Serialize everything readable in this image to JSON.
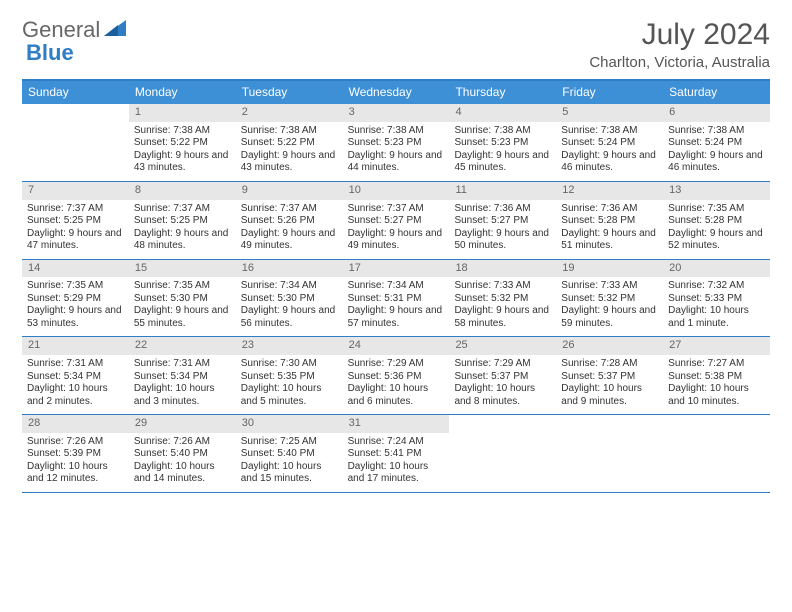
{
  "brand": {
    "text_gray": "General",
    "text_blue": "Blue"
  },
  "title": "July 2024",
  "location": "Charlton, Victoria, Australia",
  "colors": {
    "header_bg": "#3d8fd6",
    "rule": "#2f7dc4",
    "daynum_bg": "#e7e7e7",
    "text": "#333333",
    "title_text": "#555555",
    "logo_gray": "#676767",
    "logo_blue": "#2f7dc4"
  },
  "layout": {
    "columns": 7,
    "rows": 5,
    "first_weekday_index": 1
  },
  "weekdays": [
    "Sunday",
    "Monday",
    "Tuesday",
    "Wednesday",
    "Thursday",
    "Friday",
    "Saturday"
  ],
  "days": [
    {
      "n": 1,
      "sunrise": "7:38 AM",
      "sunset": "5:22 PM",
      "daylight": "9 hours and 43 minutes."
    },
    {
      "n": 2,
      "sunrise": "7:38 AM",
      "sunset": "5:22 PM",
      "daylight": "9 hours and 43 minutes."
    },
    {
      "n": 3,
      "sunrise": "7:38 AM",
      "sunset": "5:23 PM",
      "daylight": "9 hours and 44 minutes."
    },
    {
      "n": 4,
      "sunrise": "7:38 AM",
      "sunset": "5:23 PM",
      "daylight": "9 hours and 45 minutes."
    },
    {
      "n": 5,
      "sunrise": "7:38 AM",
      "sunset": "5:24 PM",
      "daylight": "9 hours and 46 minutes."
    },
    {
      "n": 6,
      "sunrise": "7:38 AM",
      "sunset": "5:24 PM",
      "daylight": "9 hours and 46 minutes."
    },
    {
      "n": 7,
      "sunrise": "7:37 AM",
      "sunset": "5:25 PM",
      "daylight": "9 hours and 47 minutes."
    },
    {
      "n": 8,
      "sunrise": "7:37 AM",
      "sunset": "5:25 PM",
      "daylight": "9 hours and 48 minutes."
    },
    {
      "n": 9,
      "sunrise": "7:37 AM",
      "sunset": "5:26 PM",
      "daylight": "9 hours and 49 minutes."
    },
    {
      "n": 10,
      "sunrise": "7:37 AM",
      "sunset": "5:27 PM",
      "daylight": "9 hours and 49 minutes."
    },
    {
      "n": 11,
      "sunrise": "7:36 AM",
      "sunset": "5:27 PM",
      "daylight": "9 hours and 50 minutes."
    },
    {
      "n": 12,
      "sunrise": "7:36 AM",
      "sunset": "5:28 PM",
      "daylight": "9 hours and 51 minutes."
    },
    {
      "n": 13,
      "sunrise": "7:35 AM",
      "sunset": "5:28 PM",
      "daylight": "9 hours and 52 minutes."
    },
    {
      "n": 14,
      "sunrise": "7:35 AM",
      "sunset": "5:29 PM",
      "daylight": "9 hours and 53 minutes."
    },
    {
      "n": 15,
      "sunrise": "7:35 AM",
      "sunset": "5:30 PM",
      "daylight": "9 hours and 55 minutes."
    },
    {
      "n": 16,
      "sunrise": "7:34 AM",
      "sunset": "5:30 PM",
      "daylight": "9 hours and 56 minutes."
    },
    {
      "n": 17,
      "sunrise": "7:34 AM",
      "sunset": "5:31 PM",
      "daylight": "9 hours and 57 minutes."
    },
    {
      "n": 18,
      "sunrise": "7:33 AM",
      "sunset": "5:32 PM",
      "daylight": "9 hours and 58 minutes."
    },
    {
      "n": 19,
      "sunrise": "7:33 AM",
      "sunset": "5:32 PM",
      "daylight": "9 hours and 59 minutes."
    },
    {
      "n": 20,
      "sunrise": "7:32 AM",
      "sunset": "5:33 PM",
      "daylight": "10 hours and 1 minute."
    },
    {
      "n": 21,
      "sunrise": "7:31 AM",
      "sunset": "5:34 PM",
      "daylight": "10 hours and 2 minutes."
    },
    {
      "n": 22,
      "sunrise": "7:31 AM",
      "sunset": "5:34 PM",
      "daylight": "10 hours and 3 minutes."
    },
    {
      "n": 23,
      "sunrise": "7:30 AM",
      "sunset": "5:35 PM",
      "daylight": "10 hours and 5 minutes."
    },
    {
      "n": 24,
      "sunrise": "7:29 AM",
      "sunset": "5:36 PM",
      "daylight": "10 hours and 6 minutes."
    },
    {
      "n": 25,
      "sunrise": "7:29 AM",
      "sunset": "5:37 PM",
      "daylight": "10 hours and 8 minutes."
    },
    {
      "n": 26,
      "sunrise": "7:28 AM",
      "sunset": "5:37 PM",
      "daylight": "10 hours and 9 minutes."
    },
    {
      "n": 27,
      "sunrise": "7:27 AM",
      "sunset": "5:38 PM",
      "daylight": "10 hours and 10 minutes."
    },
    {
      "n": 28,
      "sunrise": "7:26 AM",
      "sunset": "5:39 PM",
      "daylight": "10 hours and 12 minutes."
    },
    {
      "n": 29,
      "sunrise": "7:26 AM",
      "sunset": "5:40 PM",
      "daylight": "10 hours and 14 minutes."
    },
    {
      "n": 30,
      "sunrise": "7:25 AM",
      "sunset": "5:40 PM",
      "daylight": "10 hours and 15 minutes."
    },
    {
      "n": 31,
      "sunrise": "7:24 AM",
      "sunset": "5:41 PM",
      "daylight": "10 hours and 17 minutes."
    }
  ],
  "labels": {
    "sunrise": "Sunrise: ",
    "sunset": "Sunset: ",
    "daylight": "Daylight: "
  }
}
